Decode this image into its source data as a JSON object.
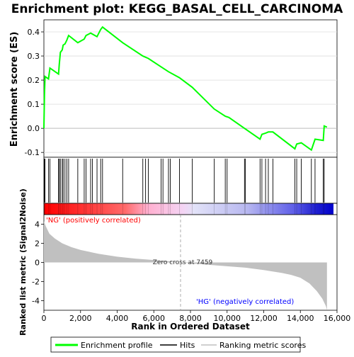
{
  "chart_data": {
    "type": "line",
    "title": "Enrichment plot: KEGG_BASAL_CELL_CARCINOMA",
    "top_panel": {
      "ylabel": "Enrichment score (ES)",
      "ylim": [
        -0.12,
        0.45
      ],
      "yticks": [
        "-0.1",
        "0.0",
        "0.1",
        "0.2",
        "0.3",
        "0.4"
      ],
      "ytick_values": [
        -0.1,
        0.0,
        0.1,
        0.2,
        0.3,
        0.4
      ],
      "grid": true,
      "series": [
        {
          "name": "Enrichment profile",
          "color": "#00ff00",
          "x": [
            0,
            30,
            60,
            250,
            330,
            800,
            840,
            900,
            1000,
            1050,
            1150,
            1250,
            1350,
            1850,
            2200,
            2300,
            2550,
            2900,
            3100,
            3200,
            4300,
            5400,
            5700,
            6400,
            6800,
            7400,
            8100,
            9300,
            9900,
            10100,
            10950,
            11800,
            11900,
            12100,
            12250,
            12500,
            13700,
            13800,
            14050,
            14600,
            14800,
            15250,
            15300,
            15450
          ],
          "y": [
            0.0,
            0.14,
            0.215,
            0.205,
            0.25,
            0.225,
            0.265,
            0.315,
            0.325,
            0.345,
            0.35,
            0.365,
            0.385,
            0.355,
            0.37,
            0.385,
            0.395,
            0.38,
            0.41,
            0.42,
            0.355,
            0.3,
            0.29,
            0.255,
            0.235,
            0.21,
            0.17,
            0.08,
            0.05,
            0.045,
            0.0,
            -0.045,
            -0.025,
            -0.02,
            -0.015,
            -0.015,
            -0.085,
            -0.065,
            -0.06,
            -0.09,
            -0.045,
            -0.05,
            0.01,
            0.005
          ]
        }
      ]
    },
    "hits_panel": {
      "hit_positions": [
        30,
        60,
        250,
        330,
        800,
        840,
        900,
        1000,
        1050,
        1150,
        1250,
        1350,
        1850,
        2200,
        2300,
        2550,
        2650,
        2900,
        3100,
        3200,
        4300,
        5400,
        5550,
        5700,
        6400,
        6500,
        6800,
        6900,
        7400,
        8100,
        9300,
        9900,
        10000,
        10950,
        11000,
        11800,
        11900,
        12100,
        12250,
        12500,
        13700,
        13800,
        14050,
        14600,
        14800,
        15250,
        15300
      ]
    },
    "bottom_panel": {
      "ylabel": "Ranked list metric (Signal2Noise)",
      "ylim": [
        -5,
        5
      ],
      "yticks": [
        "-4",
        "-2",
        "0",
        "2",
        "4"
      ],
      "ytick_values": [
        -4,
        -2,
        0,
        2,
        4
      ],
      "xlabel": "Rank in Ordered Dataset",
      "xlim": [
        0,
        16000
      ],
      "xticks": [
        "0",
        "2,000",
        "4,000",
        "6,000",
        "8,000",
        "10,000",
        "12,000",
        "14,000",
        "16,000"
      ],
      "xtick_values": [
        0,
        2000,
        4000,
        6000,
        8000,
        10000,
        12000,
        14000,
        16000
      ],
      "metric_x": [
        0,
        100,
        300,
        600,
        1000,
        1500,
        2000,
        3000,
        4000,
        5000,
        6000,
        7000,
        7459,
        8000,
        9000,
        10000,
        11000,
        12000,
        13000,
        13500,
        14000,
        14500,
        14900,
        15200,
        15400,
        15450
      ],
      "metric_y": [
        4.3,
        3.8,
        3.0,
        2.5,
        2.0,
        1.6,
        1.3,
        0.9,
        0.6,
        0.4,
        0.25,
        0.1,
        0.0,
        -0.1,
        -0.25,
        -0.4,
        -0.55,
        -0.8,
        -1.1,
        -1.3,
        -1.6,
        -2.2,
        -3.0,
        -3.8,
        -4.6,
        -5.0
      ],
      "zero_cross_rank": 7459,
      "zero_cross_label": "Zero cross at 7459",
      "positive_label": "'NG' (positively correlated)",
      "negative_label": "'HG' (negatively correlated)"
    },
    "n_genes": 15450,
    "legend": {
      "placement": "bottom",
      "entries": [
        {
          "label": "Enrichment profile",
          "color": "#00ff00"
        },
        {
          "label": "Hits",
          "color": "#000000"
        },
        {
          "label": "Ranking metric scores",
          "color": "#c0c0c0"
        }
      ]
    }
  }
}
